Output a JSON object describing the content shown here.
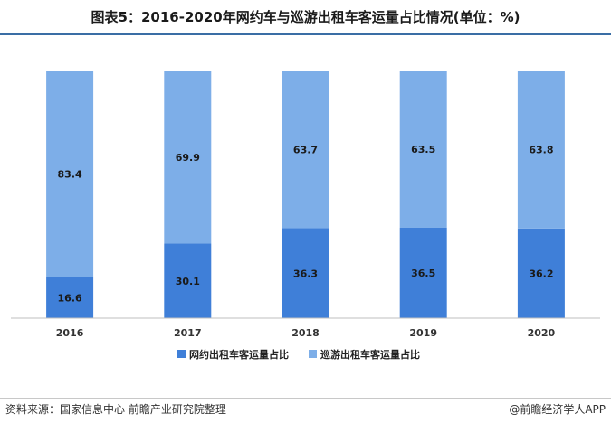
{
  "title": "图表5：2016-2020年网约车与巡游出租车客运量占比情况(单位：%)",
  "source": "资料来源：国家信息中心 前瞻产业研究院整理",
  "brand": "@前瞻经济学人APP",
  "colors": {
    "series_bottom": "#3f7fd8",
    "series_top": "#7daee8",
    "axis": "#bfbfbf",
    "title_rule": "#3a6ea5"
  },
  "chart_data": {
    "type": "bar",
    "stacked": true,
    "categories": [
      "2016",
      "2017",
      "2018",
      "2019",
      "2020"
    ],
    "series": [
      {
        "name": "网约出租车客运量占比",
        "values": [
          16.6,
          30.1,
          36.3,
          36.5,
          36.2
        ]
      },
      {
        "name": "巡游出租车客运量占比",
        "values": [
          83.4,
          69.9,
          63.7,
          63.5,
          63.8
        ]
      }
    ],
    "ylim": [
      0,
      100
    ],
    "grid": false,
    "legend_position": "bottom-center"
  }
}
